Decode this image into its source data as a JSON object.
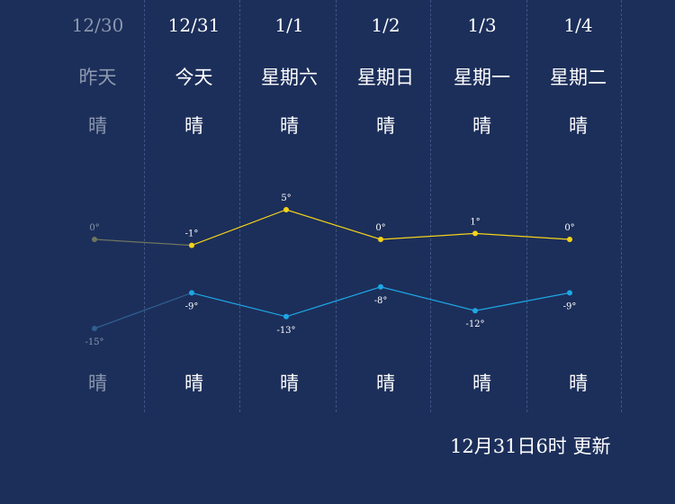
{
  "days": [
    {
      "date": "12/30",
      "name": "昨天",
      "weather_day": "晴",
      "weather_night": "晴",
      "high": 0,
      "low": -15,
      "high_label": "0°",
      "low_label": "-15°",
      "past": true
    },
    {
      "date": "12/31",
      "name": "今天",
      "weather_day": "晴",
      "weather_night": "晴",
      "high": -1,
      "low": -9,
      "high_label": "-1°",
      "low_label": "-9°",
      "past": false
    },
    {
      "date": "1/1",
      "name": "星期六",
      "weather_day": "晴",
      "weather_night": "晴",
      "high": 5,
      "low": -13,
      "high_label": "5°",
      "low_label": "-13°",
      "past": false
    },
    {
      "date": "1/2",
      "name": "星期日",
      "weather_day": "晴",
      "weather_night": "晴",
      "high": 0,
      "low": -8,
      "high_label": "0°",
      "low_label": "-8°",
      "past": false
    },
    {
      "date": "1/3",
      "name": "星期一",
      "weather_day": "晴",
      "weather_night": "晴",
      "high": 1,
      "low": -12,
      "high_label": "1°",
      "low_label": "-12°",
      "past": false
    },
    {
      "date": "1/4",
      "name": "星期二",
      "weather_day": "晴",
      "weather_night": "晴",
      "high": 0,
      "low": -9,
      "high_label": "0°",
      "low_label": "-9°",
      "past": false
    }
  ],
  "updated": "12月31日6时 更新",
  "colors": {
    "background": "#1c2f5a",
    "high_line": "#f5d21a",
    "low_line": "#1ea7e6",
    "past_high_line": "#6e7560",
    "past_low_line": "#2f5f90",
    "past_text": "#8c98b0"
  }
}
